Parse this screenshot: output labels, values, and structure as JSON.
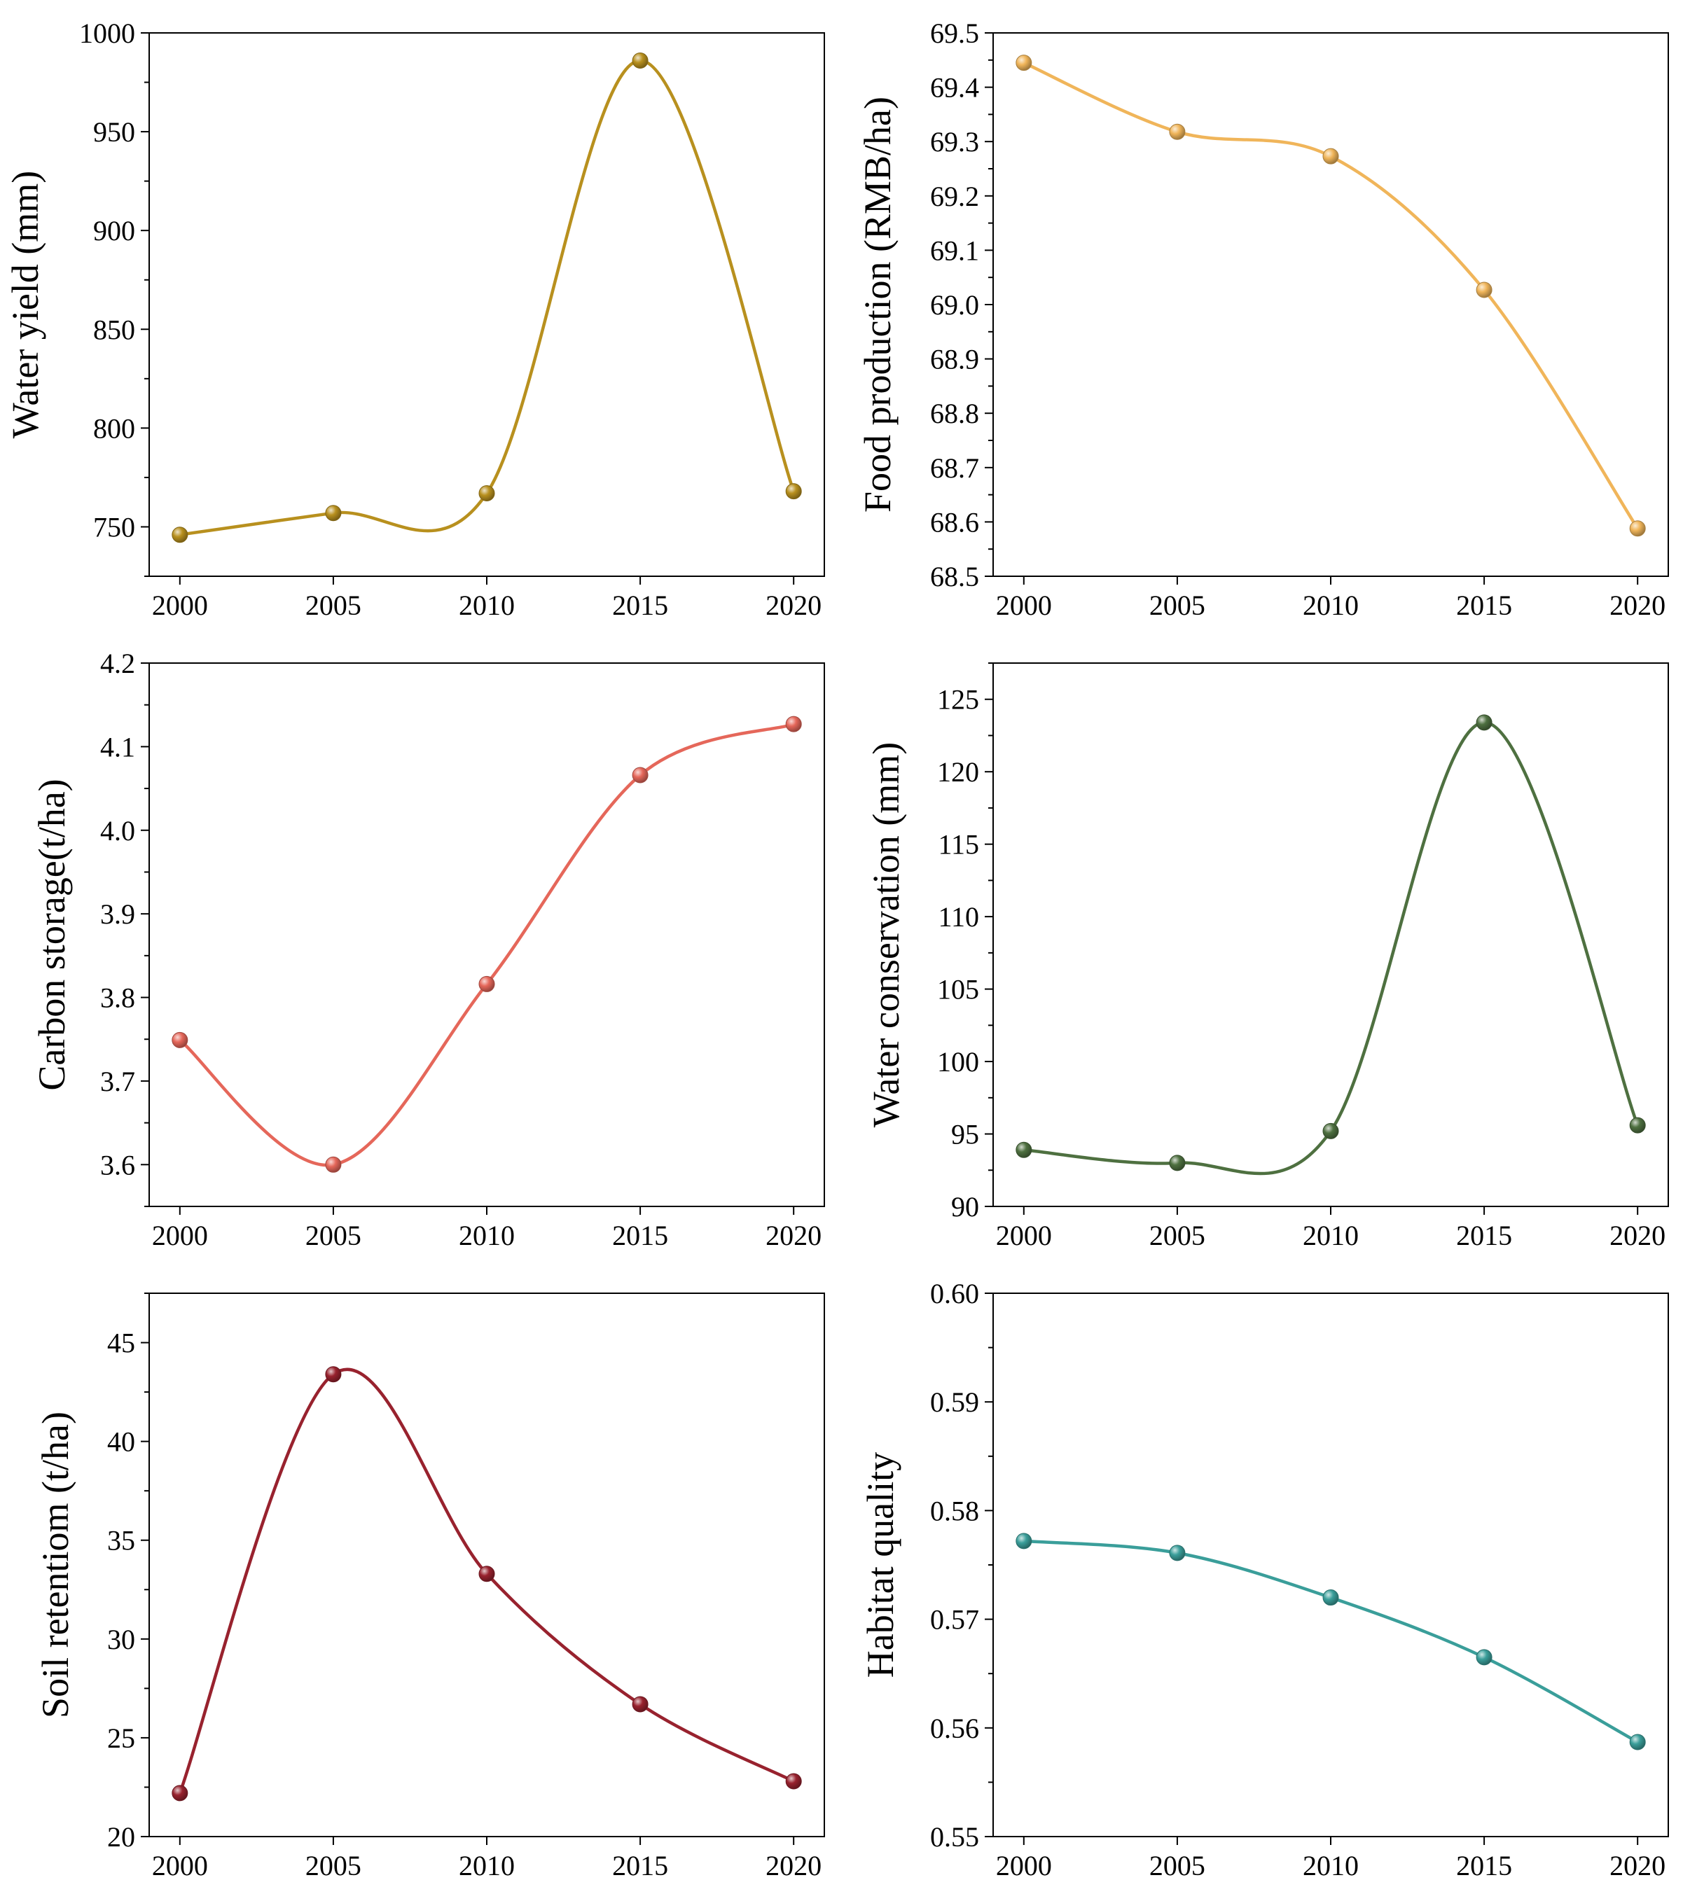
{
  "figure_title": "",
  "chart_data": [
    {
      "type": "line",
      "title": "",
      "xlabel": "",
      "ylabel": "Water yield (mm)",
      "x": [
        2000,
        2005,
        2010,
        2015,
        2020
      ],
      "series": [
        {
          "name": "Water yield",
          "values": [
            746,
            757,
            767,
            986,
            768
          ],
          "color": "#B8901E"
        }
      ],
      "xlim": [
        1999,
        2021
      ],
      "ylim": [
        725,
        1000
      ],
      "xticks": [
        "2000",
        "2005",
        "2010",
        "2015",
        "2020"
      ],
      "yticks": [
        "750",
        "800",
        "850",
        "900",
        "950",
        "1000"
      ],
      "ytick_values": [
        750,
        800,
        850,
        900,
        950,
        1000
      ],
      "ydecimals": 0,
      "yminor_step": 25,
      "grid": false
    },
    {
      "type": "line",
      "title": "",
      "xlabel": "",
      "ylabel": "Food production (RMB/ha)",
      "x": [
        2000,
        2005,
        2010,
        2015,
        2020
      ],
      "series": [
        {
          "name": "Food production",
          "values": [
            69.445,
            69.318,
            69.273,
            69.027,
            68.588
          ],
          "color": "#F0B55A"
        }
      ],
      "xlim": [
        1999,
        2021
      ],
      "ylim": [
        68.5,
        69.5
      ],
      "xticks": [
        "2000",
        "2005",
        "2010",
        "2015",
        "2020"
      ],
      "yticks": [
        "68.5",
        "68.6",
        "68.7",
        "68.8",
        "68.9",
        "69.0",
        "69.1",
        "69.2",
        "69.3",
        "69.4",
        "69.5"
      ],
      "ytick_values": [
        68.5,
        68.6,
        68.7,
        68.8,
        68.9,
        69.0,
        69.1,
        69.2,
        69.3,
        69.4,
        69.5
      ],
      "ydecimals": 1,
      "yminor_step": 0.05,
      "grid": false
    },
    {
      "type": "line",
      "title": "",
      "xlabel": "",
      "ylabel": "Carbon storage(t/ha)",
      "x": [
        2000,
        2005,
        2010,
        2015,
        2020
      ],
      "series": [
        {
          "name": "Carbon storage",
          "values": [
            3.749,
            3.6,
            3.816,
            4.066,
            4.127
          ],
          "color": "#E5675A"
        }
      ],
      "xlim": [
        1999,
        2021
      ],
      "ylim": [
        3.55,
        4.2
      ],
      "xticks": [
        "2000",
        "2005",
        "2010",
        "2015",
        "2020"
      ],
      "yticks": [
        "3.6",
        "3.7",
        "3.8",
        "3.9",
        "4.0",
        "4.1",
        "4.2"
      ],
      "ytick_values": [
        3.6,
        3.7,
        3.8,
        3.9,
        4.0,
        4.1,
        4.2
      ],
      "ydecimals": 1,
      "yminor_step": 0.05,
      "grid": false
    },
    {
      "type": "line",
      "title": "",
      "xlabel": "",
      "ylabel": "Water conservation (mm)",
      "x": [
        2000,
        2005,
        2010,
        2015,
        2020
      ],
      "series": [
        {
          "name": "Water conservation",
          "values": [
            93.9,
            93.0,
            95.2,
            123.4,
            95.6
          ],
          "color": "#4E7040"
        }
      ],
      "xlim": [
        1999,
        2021
      ],
      "ylim": [
        90,
        127.5
      ],
      "xticks": [
        "2000",
        "2005",
        "2010",
        "2015",
        "2020"
      ],
      "yticks": [
        "90",
        "95",
        "100",
        "105",
        "110",
        "115",
        "120",
        "125"
      ],
      "ytick_values": [
        90,
        95,
        100,
        105,
        110,
        115,
        120,
        125
      ],
      "ydecimals": 0,
      "yminor_step": 2.5,
      "grid": false
    },
    {
      "type": "line",
      "title": "",
      "xlabel": "",
      "ylabel": "Soil retentiom (t/ha)",
      "x": [
        2000,
        2005,
        2010,
        2015,
        2020
      ],
      "series": [
        {
          "name": "Soil retention",
          "values": [
            22.2,
            43.4,
            33.3,
            26.7,
            22.8
          ],
          "color": "#98222E"
        }
      ],
      "xlim": [
        1999,
        2021
      ],
      "ylim": [
        20,
        47.5
      ],
      "xticks": [
        "2000",
        "2005",
        "2010",
        "2015",
        "2020"
      ],
      "yticks": [
        "20",
        "25",
        "30",
        "35",
        "40",
        "45"
      ],
      "ytick_values": [
        20,
        25,
        30,
        35,
        40,
        45
      ],
      "ydecimals": 0,
      "yminor_step": 2.5,
      "grid": false
    },
    {
      "type": "line",
      "title": "",
      "xlabel": "",
      "ylabel": "Habitat quality",
      "x": [
        2000,
        2005,
        2010,
        2015,
        2020
      ],
      "series": [
        {
          "name": "Habitat quality",
          "values": [
            0.5772,
            0.5761,
            0.572,
            0.5665,
            0.5587
          ],
          "color": "#3A9E9A"
        }
      ],
      "xlim": [
        1999,
        2021
      ],
      "ylim": [
        0.55,
        0.6
      ],
      "xticks": [
        "2000",
        "2005",
        "2010",
        "2015",
        "2020"
      ],
      "yticks": [
        "0.55",
        "0.56",
        "0.57",
        "0.58",
        "0.59",
        "0.60"
      ],
      "ytick_values": [
        0.55,
        0.56,
        0.57,
        0.58,
        0.59,
        0.6
      ],
      "ydecimals": 2,
      "yminor_step": 0.005,
      "grid": false
    }
  ]
}
